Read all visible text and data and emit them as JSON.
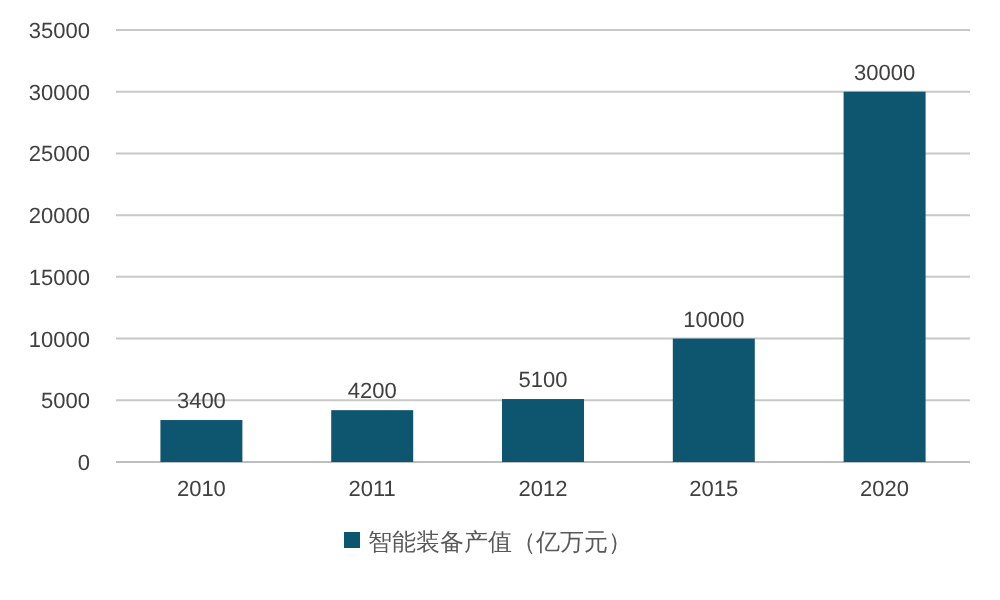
{
  "chart_data": {
    "type": "bar",
    "categories": [
      "2010",
      "2011",
      "2012",
      "2015",
      "2020"
    ],
    "series": [
      {
        "name": "智能装备产值（亿万元）",
        "color": "#0e5670",
        "values": [
          3400,
          4200,
          5100,
          10000,
          30000
        ]
      }
    ],
    "ylim": [
      0,
      35000
    ],
    "yticks": [
      0,
      5000,
      10000,
      15000,
      20000,
      25000,
      30000,
      35000
    ],
    "grid": "y",
    "data_labels": true,
    "legend": "bottom"
  }
}
